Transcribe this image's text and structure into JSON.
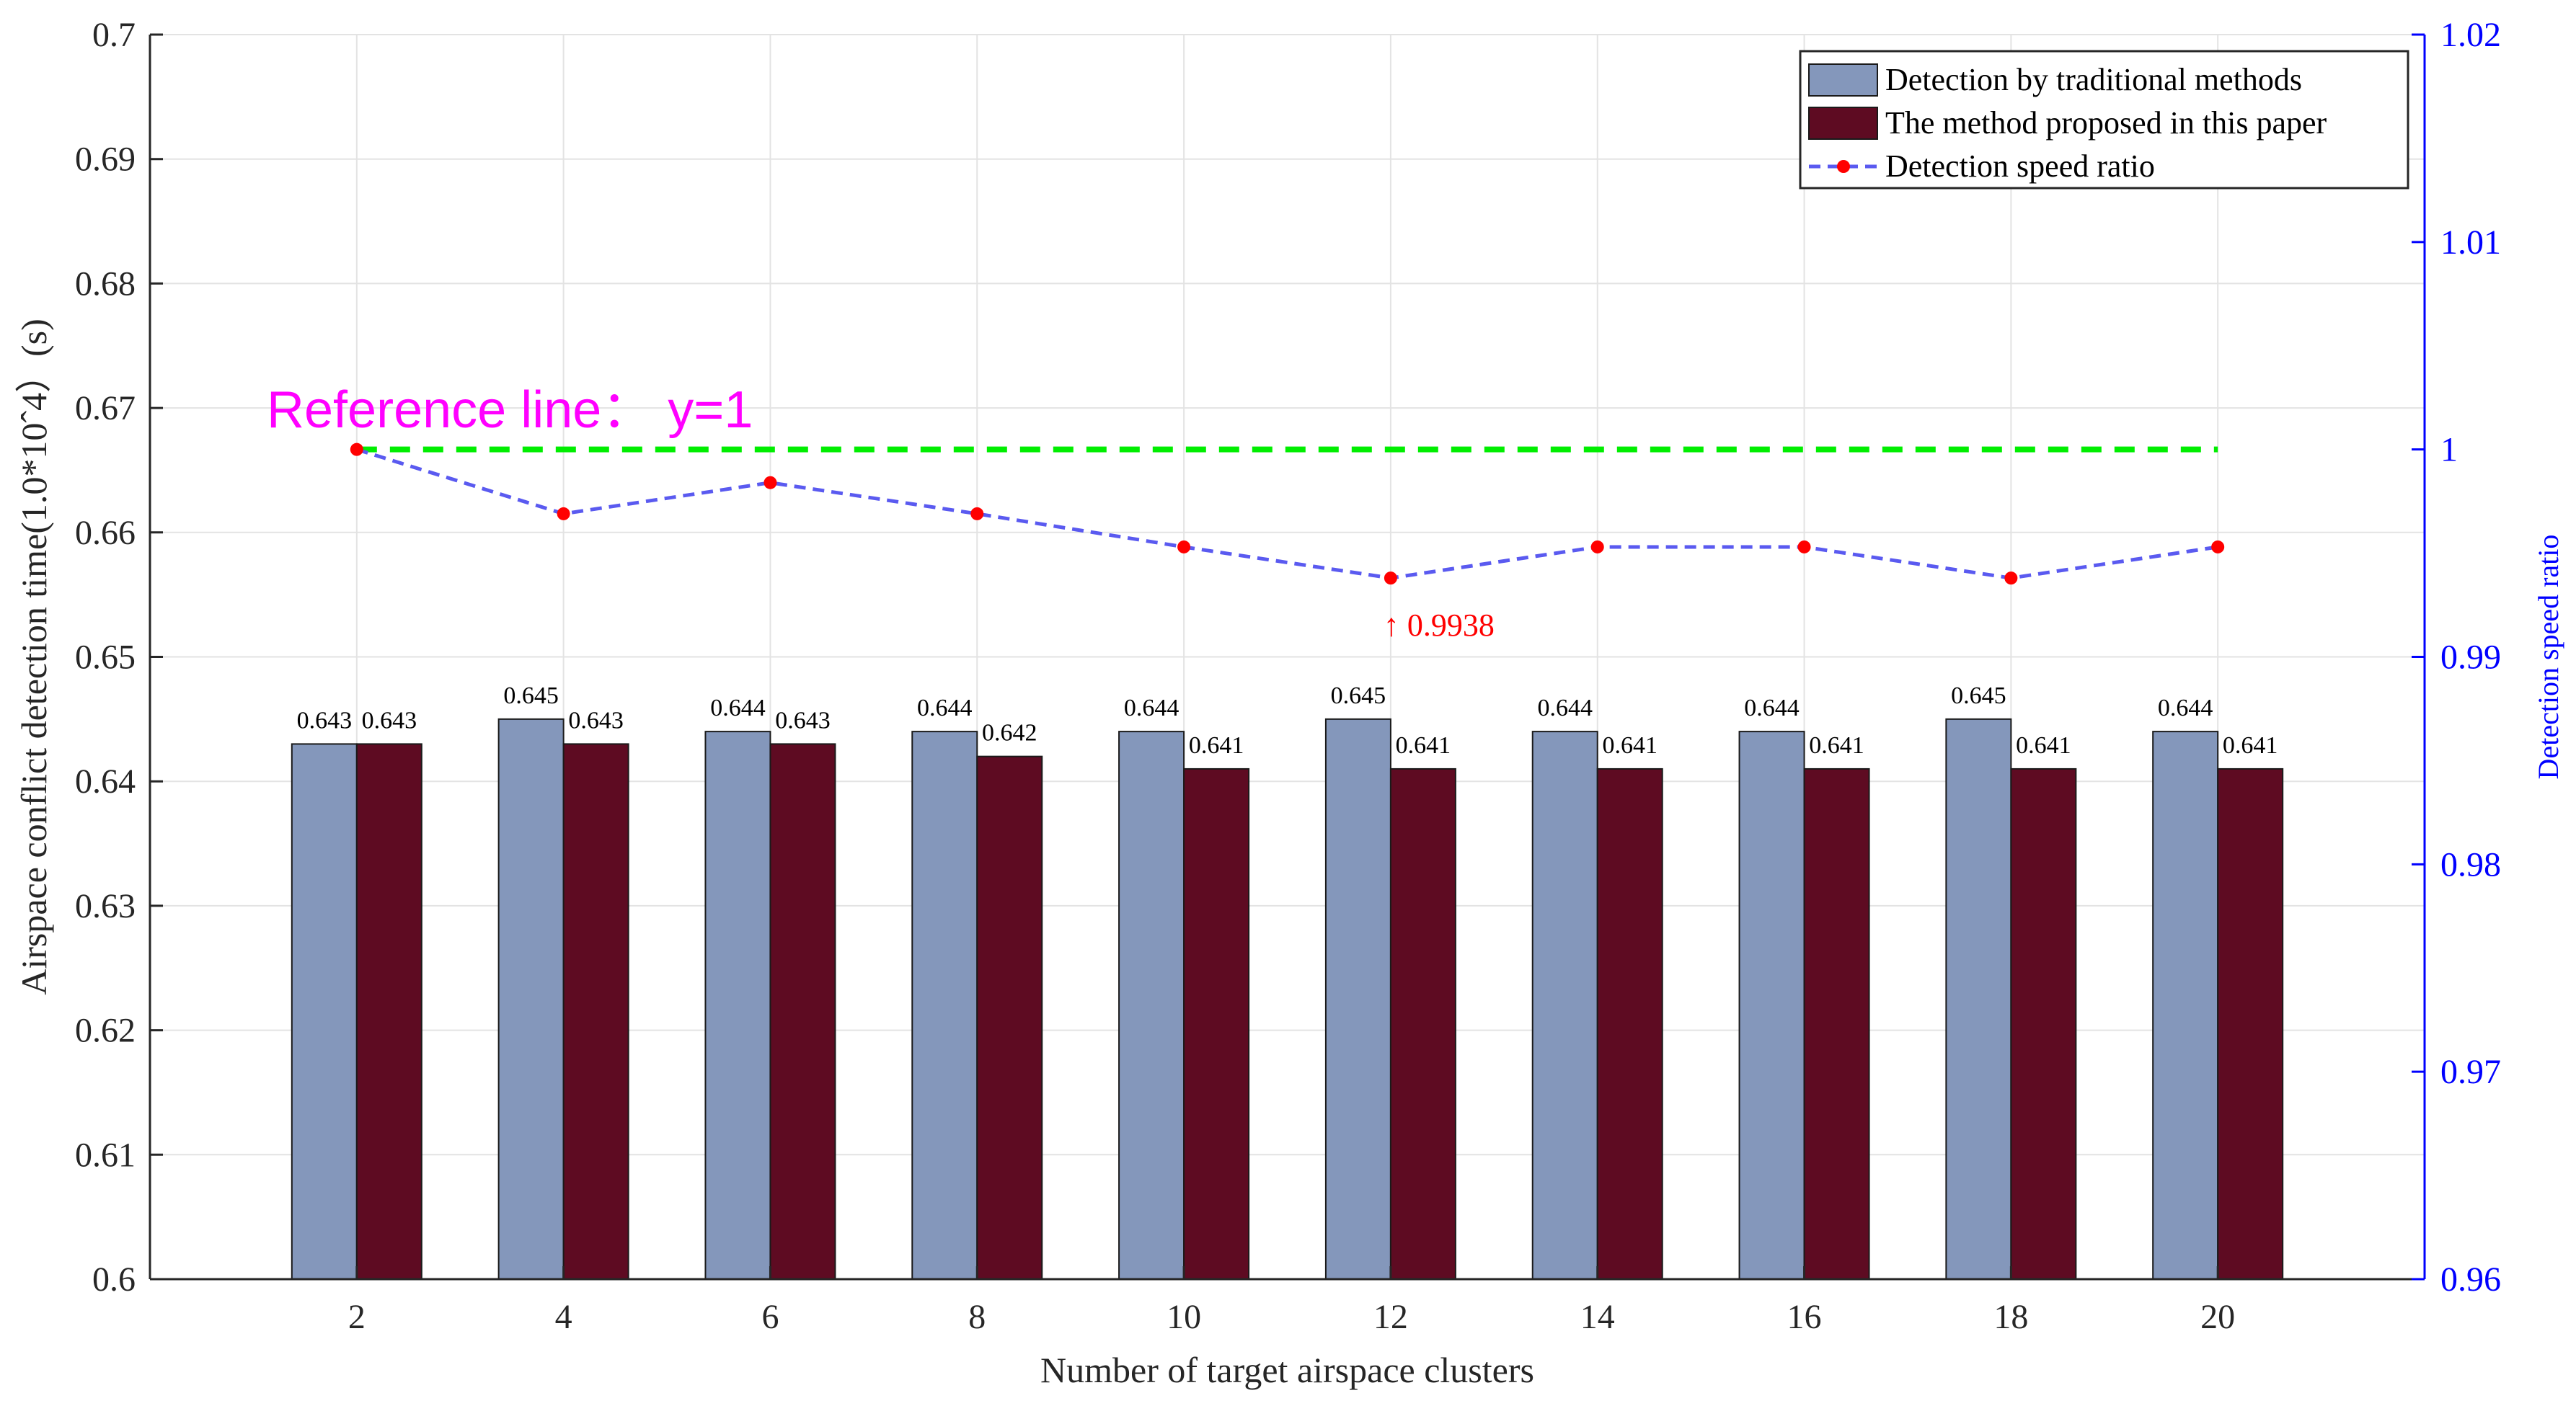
{
  "chart_data": {
    "type": "bar",
    "categories": [
      "2",
      "4",
      "6",
      "8",
      "10",
      "12",
      "14",
      "16",
      "18",
      "20"
    ],
    "series": [
      {
        "name": "Detection by traditional methods",
        "color": "#8497bb",
        "values": [
          0.643,
          0.645,
          0.644,
          0.644,
          0.644,
          0.645,
          0.644,
          0.644,
          0.645,
          0.644
        ],
        "labels": [
          "0.643",
          "0.645",
          "0.644",
          "0.644",
          "0.644",
          "0.645",
          "0.644",
          "0.644",
          "0.645",
          "0.644"
        ]
      },
      {
        "name": "The method proposed in this paper",
        "color": "#5e0b22",
        "values": [
          0.643,
          0.643,
          0.643,
          0.642,
          0.641,
          0.641,
          0.641,
          0.641,
          0.641,
          0.641
        ],
        "labels": [
          "0.643",
          "0.643",
          "0.643",
          "0.642",
          "0.641",
          "0.641",
          "0.641",
          "0.641",
          "0.641",
          "0.641"
        ]
      }
    ],
    "line_series": {
      "name": "Detection speed ratio",
      "axis": "right",
      "line_color": "#5a5af0",
      "marker_color": "#ff0000",
      "values": [
        1.0,
        0.9969,
        0.9984,
        0.9969,
        0.9953,
        0.9938,
        0.9953,
        0.9953,
        0.9938,
        0.9953
      ]
    },
    "reference_line": {
      "y": 1,
      "axis": "right",
      "color": "#00ee00",
      "label": "Reference line： y=1",
      "label_color": "#ff00ff"
    },
    "annotation": {
      "text": "↑ 0.9938",
      "at_category": "12",
      "color": "#ff0000"
    },
    "xlabel": "Number of target airspace clusters",
    "ylabel": "Airspace conflict detection time(1.0*10ˆ4）(s)",
    "ylabel_right": "Detection speed ratio",
    "ylim": [
      0.6,
      0.7
    ],
    "ylim_right": [
      0.96,
      1.02
    ],
    "yticks": [
      "0.6",
      "0.61",
      "0.62",
      "0.63",
      "0.64",
      "0.65",
      "0.66",
      "0.67",
      "0.68",
      "0.69",
      "0.7"
    ],
    "yticks_right": [
      "0.96",
      "0.97",
      "0.98",
      "0.99",
      "1",
      "1.01",
      "1.02"
    ],
    "right_axis_color": "#0000ff",
    "grid": true,
    "legend_position": "top-right"
  }
}
